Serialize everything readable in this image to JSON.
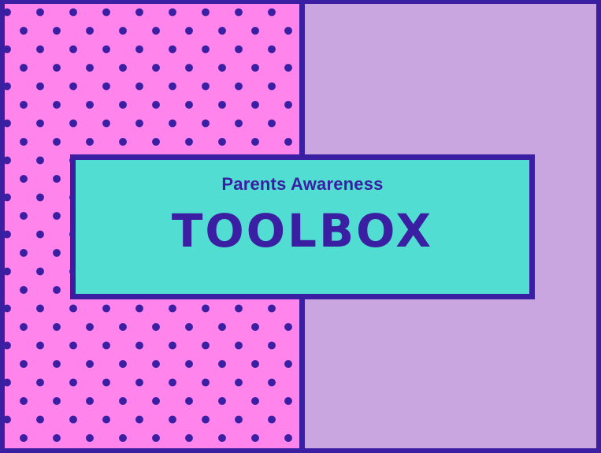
{
  "slide": {
    "subtitle": "Parents Awareness",
    "title": "TOOLBOX"
  },
  "colors": {
    "border": "#3a1fa3",
    "dot_panel_background": "#ff84ec",
    "dots": "#3a1fa3",
    "right_panel_background": "#c9a6e0",
    "title_box_background": "#52ddd3",
    "text": "#3a1fa3"
  }
}
